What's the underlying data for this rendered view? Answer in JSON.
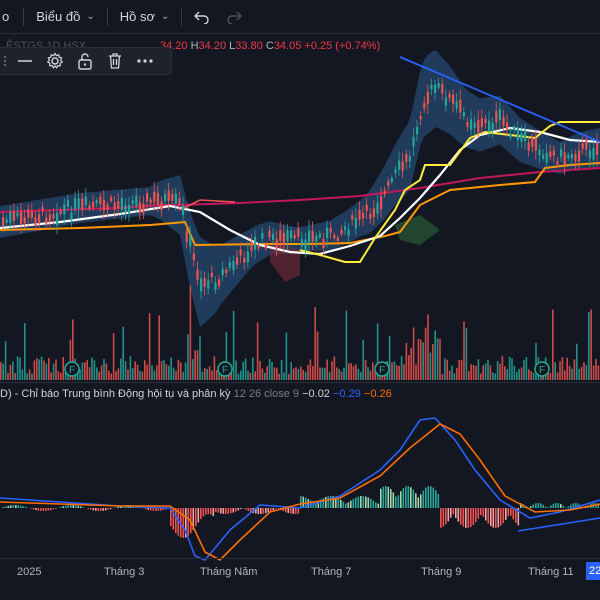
{
  "toolbar": {
    "partial_label": "o",
    "chart_menu": "Biểu đồ",
    "profile_menu": "Hồ sơ"
  },
  "legend": {
    "symbol_partial": "ỂSTGS 1D HSX",
    "open": "34.20",
    "high_label": "H",
    "high": "34.20",
    "low_label": "L",
    "low": "33.80",
    "close_label": "C",
    "close": "34.05",
    "change": "+0.25 (+0.74%)"
  },
  "floating_toolbar": {
    "icons": [
      "grip-icon",
      "minus-icon",
      "gear-icon",
      "unlock-icon",
      "trash-icon",
      "more-icon"
    ]
  },
  "macd": {
    "title": "D) - Chỉ báo Trung bình Động hội tụ và phân kỳ",
    "params": "12 26 close 9",
    "histogram": "−0.02",
    "macd": "−0.29",
    "signal": "−0.26"
  },
  "events": {
    "marker_label": "F"
  },
  "xaxis": {
    "labels": [
      "2025",
      "Tháng 3",
      "Tháng Năm",
      "Tháng 7",
      "Tháng 9",
      "Tháng 11"
    ],
    "current": "22"
  },
  "colors": {
    "background": "#131722",
    "up": "#26a69a",
    "down": "#ef5350",
    "bb_fill": "#2b5a8a",
    "ma_white": "#ffffff",
    "ma_yellow": "#ffeb3b",
    "ma_orange": "#ff9800",
    "ma_magenta": "#c2185b",
    "macd_line": "#2962ff",
    "signal_line": "#ff6d00"
  }
}
